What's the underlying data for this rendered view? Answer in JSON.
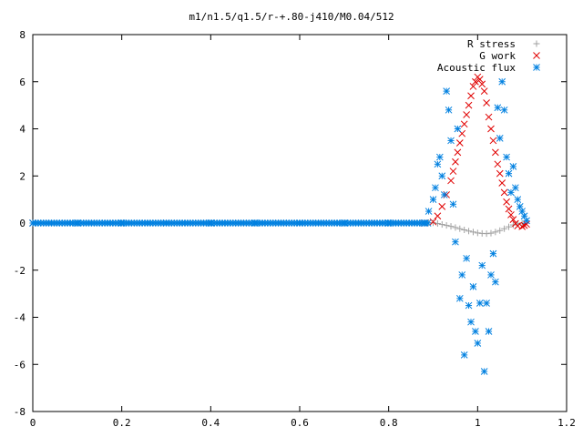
{
  "chart_data": {
    "type": "scatter",
    "title": "m1/n1.5/q1.5/r-+.80-j410/M0.04/512",
    "xlabel": "",
    "ylabel": "",
    "xlim": [
      0,
      1.2
    ],
    "ylim": [
      -8,
      8
    ],
    "x_ticks": [
      "0",
      "0.2",
      "0.4",
      "0.6",
      "0.8",
      "1",
      "1.2"
    ],
    "y_ticks": [
      "8",
      "6",
      "4",
      "2",
      "0",
      "-2",
      "-4",
      "-6",
      "-8"
    ],
    "x_tick_values": [
      0,
      0.2,
      0.4,
      0.6,
      0.8,
      1.0,
      1.2
    ],
    "y_tick_values": [
      8,
      6,
      4,
      2,
      0,
      -2,
      -4,
      -6,
      -8
    ],
    "grid": false,
    "legend_position": "top-right",
    "series": [
      {
        "name": "R stress",
        "marker": "plus",
        "color": "#a0a0a0",
        "points": [
          [
            0.0,
            0
          ],
          [
            0.1,
            0
          ],
          [
            0.2,
            0
          ],
          [
            0.3,
            0
          ],
          [
            0.4,
            0
          ],
          [
            0.5,
            0
          ],
          [
            0.6,
            0
          ],
          [
            0.7,
            0
          ],
          [
            0.8,
            0
          ],
          [
            0.88,
            0
          ],
          [
            0.89,
            0.02
          ],
          [
            0.9,
            0.01
          ],
          [
            0.91,
            -0.02
          ],
          [
            0.92,
            -0.06
          ],
          [
            0.93,
            -0.1
          ],
          [
            0.94,
            -0.14
          ],
          [
            0.95,
            -0.19
          ],
          [
            0.96,
            -0.24
          ],
          [
            0.97,
            -0.29
          ],
          [
            0.98,
            -0.34
          ],
          [
            0.99,
            -0.38
          ],
          [
            1.0,
            -0.42
          ],
          [
            1.01,
            -0.44
          ],
          [
            1.02,
            -0.45
          ],
          [
            1.03,
            -0.43
          ],
          [
            1.04,
            -0.38
          ],
          [
            1.05,
            -0.32
          ],
          [
            1.06,
            -0.24
          ],
          [
            1.07,
            -0.16
          ],
          [
            1.08,
            -0.08
          ],
          [
            1.09,
            -0.03
          ],
          [
            1.1,
            0.0
          ]
        ]
      },
      {
        "name": "G work",
        "marker": "cross",
        "color": "#e00000",
        "points": [
          [
            0.0,
            0
          ],
          [
            0.88,
            0
          ],
          [
            0.9,
            0.05
          ],
          [
            0.91,
            0.3
          ],
          [
            0.92,
            0.7
          ],
          [
            0.93,
            1.2
          ],
          [
            0.94,
            1.8
          ],
          [
            0.945,
            2.2
          ],
          [
            0.95,
            2.6
          ],
          [
            0.955,
            3.0
          ],
          [
            0.96,
            3.4
          ],
          [
            0.965,
            3.8
          ],
          [
            0.97,
            4.2
          ],
          [
            0.975,
            4.6
          ],
          [
            0.98,
            5.0
          ],
          [
            0.985,
            5.4
          ],
          [
            0.99,
            5.8
          ],
          [
            0.995,
            6.0
          ],
          [
            1.0,
            6.2
          ],
          [
            1.005,
            6.1
          ],
          [
            1.01,
            5.9
          ],
          [
            1.015,
            5.6
          ],
          [
            1.02,
            5.1
          ],
          [
            1.025,
            4.5
          ],
          [
            1.03,
            4.0
          ],
          [
            1.035,
            3.5
          ],
          [
            1.04,
            3.0
          ],
          [
            1.045,
            2.5
          ],
          [
            1.05,
            2.1
          ],
          [
            1.055,
            1.7
          ],
          [
            1.06,
            1.3
          ],
          [
            1.065,
            0.9
          ],
          [
            1.07,
            0.6
          ],
          [
            1.075,
            0.35
          ],
          [
            1.08,
            0.15
          ],
          [
            1.085,
            -0.02
          ],
          [
            1.09,
            -0.12
          ],
          [
            1.1,
            -0.15
          ],
          [
            1.105,
            -0.1
          ],
          [
            1.11,
            -0.05
          ]
        ]
      },
      {
        "name": "Acoustic flux",
        "marker": "star",
        "color": "#0080e0",
        "points": [
          [
            0.0,
            0
          ],
          [
            0.1,
            0
          ],
          [
            0.2,
            0
          ],
          [
            0.3,
            0
          ],
          [
            0.4,
            0
          ],
          [
            0.5,
            0
          ],
          [
            0.6,
            0
          ],
          [
            0.7,
            0
          ],
          [
            0.8,
            0
          ],
          [
            0.88,
            0
          ],
          [
            0.89,
            0.5
          ],
          [
            0.9,
            1.0
          ],
          [
            0.905,
            1.5
          ],
          [
            0.91,
            2.5
          ],
          [
            0.915,
            2.8
          ],
          [
            0.92,
            2.0
          ],
          [
            0.925,
            1.2
          ],
          [
            0.93,
            5.6
          ],
          [
            0.935,
            4.8
          ],
          [
            0.94,
            3.5
          ],
          [
            0.945,
            0.8
          ],
          [
            0.95,
            -0.8
          ],
          [
            0.955,
            4.0
          ],
          [
            0.96,
            -3.2
          ],
          [
            0.965,
            -2.2
          ],
          [
            0.97,
            -5.6
          ],
          [
            0.975,
            -1.5
          ],
          [
            0.98,
            -3.5
          ],
          [
            0.985,
            -4.2
          ],
          [
            0.99,
            -2.7
          ],
          [
            0.995,
            -4.6
          ],
          [
            1.0,
            -5.1
          ],
          [
            1.005,
            -3.4
          ],
          [
            1.01,
            -1.8
          ],
          [
            1.015,
            -6.3
          ],
          [
            1.02,
            -3.4
          ],
          [
            1.025,
            -4.6
          ],
          [
            1.03,
            -2.2
          ],
          [
            1.035,
            -1.3
          ],
          [
            1.04,
            -2.5
          ],
          [
            1.045,
            4.9
          ],
          [
            1.05,
            3.6
          ],
          [
            1.055,
            6.0
          ],
          [
            1.06,
            4.8
          ],
          [
            1.065,
            2.8
          ],
          [
            1.07,
            2.1
          ],
          [
            1.075,
            1.3
          ],
          [
            1.08,
            2.4
          ],
          [
            1.085,
            1.5
          ],
          [
            1.09,
            1.0
          ],
          [
            1.095,
            0.7
          ],
          [
            1.1,
            0.5
          ],
          [
            1.105,
            0.3
          ],
          [
            1.11,
            0.1
          ]
        ]
      }
    ]
  }
}
